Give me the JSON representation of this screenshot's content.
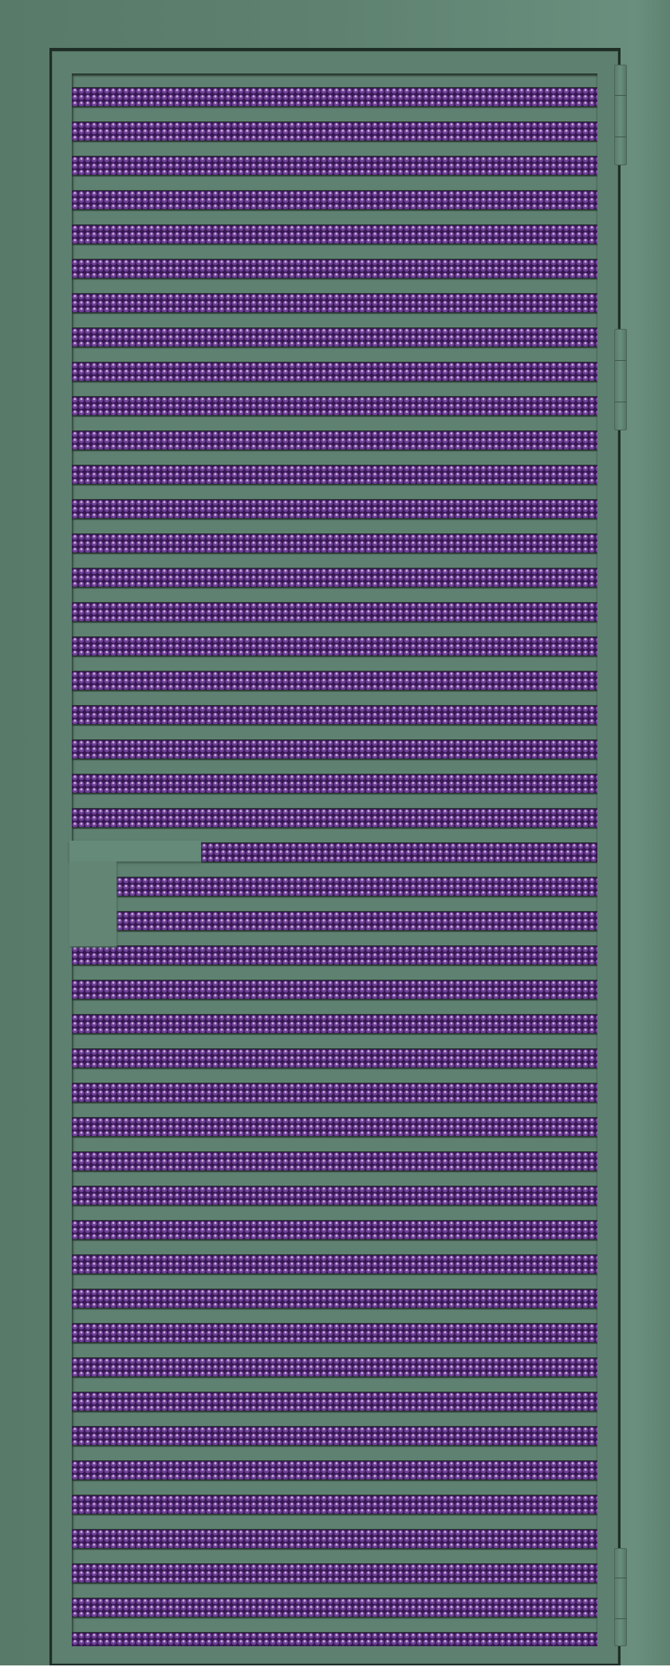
{
  "colors": {
    "frame": "#5f8270",
    "door": "#5e8070",
    "glass_pattern": "#3b1c58",
    "glass_highlight": "#c9a7d8",
    "background": "#ffffff"
  },
  "icons": {
    "handle": "door-handle",
    "hinge": "door-hinge"
  }
}
